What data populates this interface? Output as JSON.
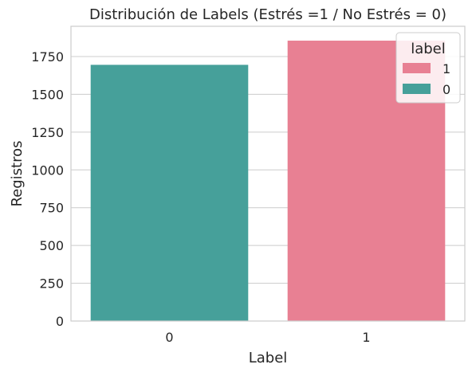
{
  "chart_data": {
    "type": "bar",
    "title": "Distribución de Labels (Estrés =1 / No Estrés = 0)",
    "xlabel": "Label",
    "ylabel": "Registros",
    "categories": [
      "0",
      "1"
    ],
    "values": [
      1695,
      1855
    ],
    "bar_colors": [
      "#46a09a",
      "#e88093"
    ],
    "ylim": [
      0,
      1950
    ],
    "yticks": [
      0,
      250,
      500,
      750,
      1000,
      1250,
      1500,
      1750
    ],
    "grid": "horizontal",
    "legend": {
      "title": "label",
      "placement": "top-right",
      "entries": [
        {
          "label": "1",
          "color": "#e88093"
        },
        {
          "label": "0",
          "color": "#46a09a"
        }
      ]
    }
  }
}
